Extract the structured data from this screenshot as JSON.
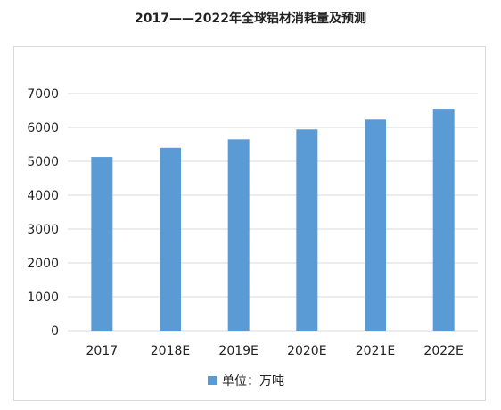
{
  "chart_data": {
    "type": "bar",
    "title": "2017——2022年全球铝材消耗量及预测",
    "categories": [
      "2017",
      "2018E",
      "2019E",
      "2020E",
      "2021E",
      "2022E"
    ],
    "series": [
      {
        "name": "单位：万吨",
        "values": [
          5130,
          5400,
          5650,
          5940,
          6230,
          6550
        ],
        "color": "#5b9bd5"
      }
    ],
    "ylim": [
      0,
      7000
    ],
    "yticks": [
      "0",
      "1000",
      "2000",
      "3000",
      "4000",
      "5000",
      "6000",
      "7000"
    ],
    "grid": true,
    "legend": "bottom"
  }
}
